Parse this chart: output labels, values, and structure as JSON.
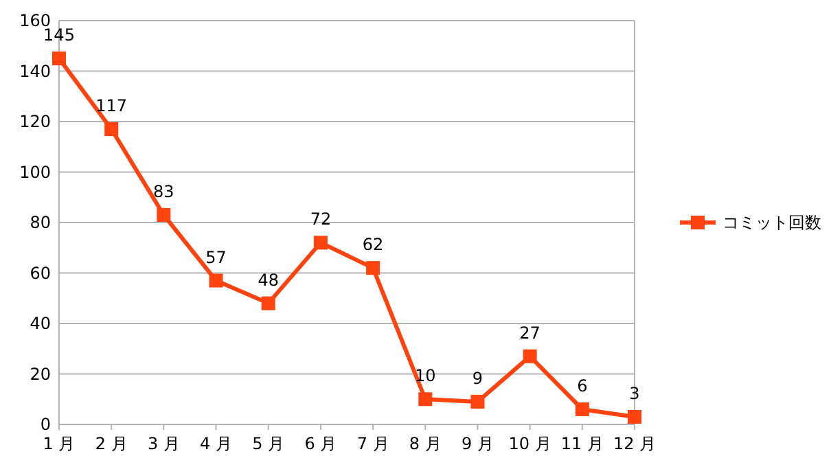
{
  "chart_data": {
    "type": "line",
    "categories": [
      "1 月",
      "2 月",
      "3 月",
      "4 月",
      "5 月",
      "6 月",
      "7 月",
      "8 月",
      "9 月",
      "10 月",
      "11 月",
      "12 月"
    ],
    "series": [
      {
        "name": "コミット回数",
        "color": "#ff420e",
        "values": [
          145,
          117,
          83,
          57,
          48,
          72,
          62,
          10,
          9,
          27,
          6,
          3
        ]
      }
    ],
    "ylim": [
      0,
      160
    ],
    "yticks": [
      0,
      20,
      40,
      60,
      80,
      100,
      120,
      140,
      160
    ],
    "grid": "y",
    "legend": "right",
    "marker": "square",
    "line_style": "solid",
    "data_labels": true
  }
}
